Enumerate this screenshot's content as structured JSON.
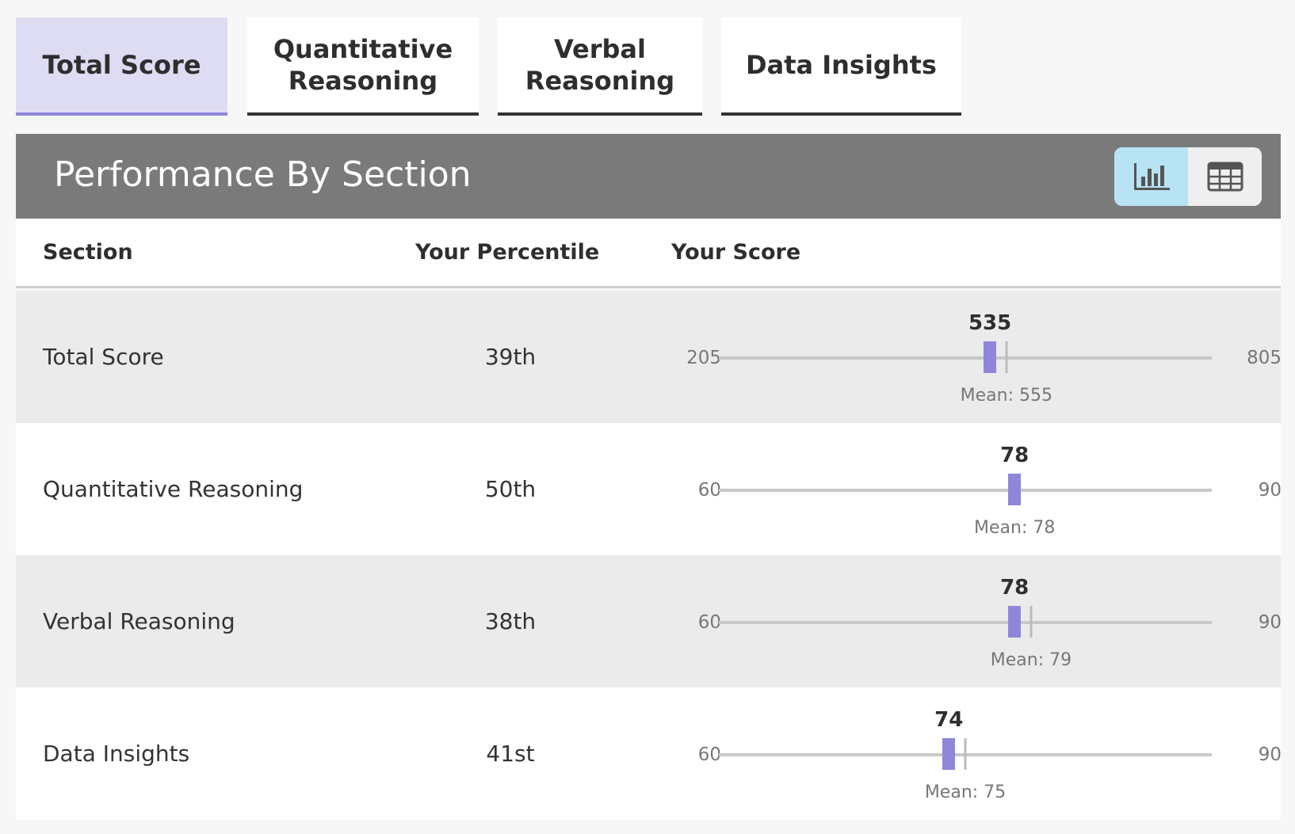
{
  "tabs": [
    {
      "label": "Total Score",
      "active": true
    },
    {
      "label": "Quantitative\nReasoning",
      "active": false
    },
    {
      "label": "Verbal\nReasoning",
      "active": false
    },
    {
      "label": "Data Insights",
      "active": false
    }
  ],
  "panel": {
    "title": "Performance By Section",
    "view_toggle": {
      "selected": "chart",
      "options": [
        "bar-chart-icon",
        "table-grid-icon"
      ]
    }
  },
  "table": {
    "headers": {
      "section": "Section",
      "percentile": "Your Percentile",
      "score": "Your Score"
    },
    "rows": [
      {
        "section": "Total Score",
        "percentile": "39th",
        "min": 205,
        "max": 805,
        "score": 535,
        "mean": 555,
        "mean_label": "Mean: 555"
      },
      {
        "section": "Quantitative Reasoning",
        "percentile": "50th",
        "min": 60,
        "max": 90,
        "score": 78,
        "mean": 78,
        "mean_label": "Mean: 78"
      },
      {
        "section": "Verbal Reasoning",
        "percentile": "38th",
        "min": 60,
        "max": 90,
        "score": 78,
        "mean": 79,
        "mean_label": "Mean: 79"
      },
      {
        "section": "Data Insights",
        "percentile": "41st",
        "min": 60,
        "max": 90,
        "score": 74,
        "mean": 75,
        "mean_label": "Mean: 75"
      }
    ]
  },
  "colors": {
    "accent": "#8f86dc",
    "tab_active_bg": "#dedcf2",
    "header_bg": "#7a7a7a",
    "toggle_selected_bg": "#b8e3f5"
  }
}
